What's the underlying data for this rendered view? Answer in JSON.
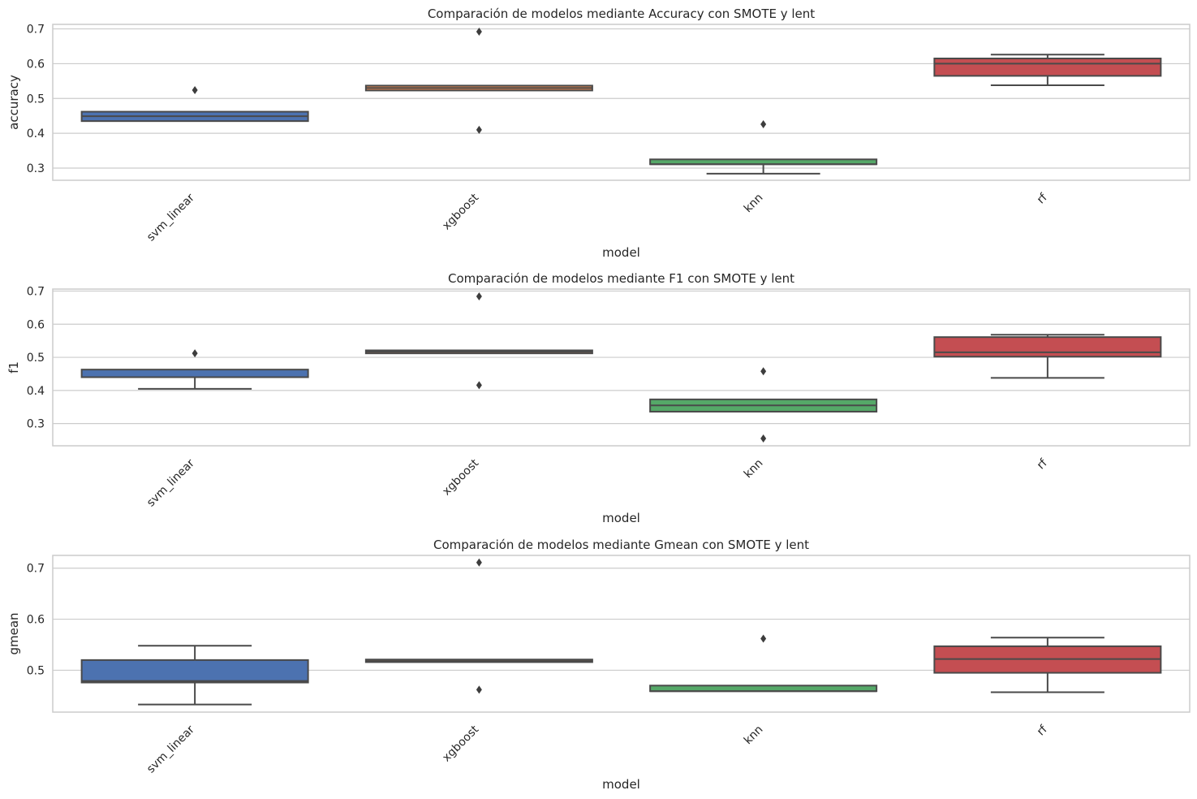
{
  "chart_data": [
    {
      "type": "box",
      "title": "Comparación de modelos mediante Accuracy con SMOTE y lent",
      "xlabel": "model",
      "ylabel": "accuracy",
      "categories": [
        "svm_linear",
        "xgboost",
        "knn",
        "rf"
      ],
      "colors": [
        "#4c72b0",
        "#dd8452",
        "#55a868",
        "#c44e52"
      ],
      "ylim": [
        0.265,
        0.713
      ],
      "yticks": [
        0.3,
        0.4,
        0.5,
        0.6,
        0.7
      ],
      "ytick_labels": [
        "0.3",
        "0.4",
        "0.5",
        "0.6",
        "0.7"
      ],
      "grid": true,
      "boxes": [
        {
          "whislo": 0.435,
          "q1": 0.435,
          "med": 0.449,
          "q3": 0.462,
          "whishi": 0.462,
          "fliers": [
            0.524
          ]
        },
        {
          "whislo": 0.523,
          "q1": 0.523,
          "med": 0.53,
          "q3": 0.537,
          "whishi": 0.537,
          "fliers": [
            0.692,
            0.41
          ]
        },
        {
          "whislo": 0.284,
          "q1": 0.311,
          "med": 0.311,
          "q3": 0.325,
          "whishi": 0.325,
          "fliers": [
            0.426
          ]
        },
        {
          "whislo": 0.538,
          "q1": 0.565,
          "med": 0.6,
          "q3": 0.615,
          "whishi": 0.626,
          "fliers": []
        }
      ]
    },
    {
      "type": "box",
      "title": "Comparación de modelos mediante F1 con SMOTE y lent",
      "xlabel": "model",
      "ylabel": "f1",
      "categories": [
        "svm_linear",
        "xgboost",
        "knn",
        "rf"
      ],
      "colors": [
        "#4c72b0",
        "#dd8452",
        "#55a868",
        "#c44e52"
      ],
      "ylim": [
        0.233,
        0.706
      ],
      "yticks": [
        0.3,
        0.4,
        0.5,
        0.6,
        0.7
      ],
      "ytick_labels": [
        "0.3",
        "0.4",
        "0.5",
        "0.6",
        "0.7"
      ],
      "grid": true,
      "boxes": [
        {
          "whislo": 0.405,
          "q1": 0.44,
          "med": 0.44,
          "q3": 0.463,
          "whishi": 0.463,
          "fliers": [
            0.512
          ]
        },
        {
          "whislo": 0.512,
          "q1": 0.512,
          "med": 0.517,
          "q3": 0.521,
          "whishi": 0.521,
          "fliers": [
            0.684,
            0.416
          ]
        },
        {
          "whislo": 0.336,
          "q1": 0.336,
          "med": 0.355,
          "q3": 0.373,
          "whishi": 0.373,
          "fliers": [
            0.458,
            0.255
          ]
        },
        {
          "whislo": 0.438,
          "q1": 0.502,
          "med": 0.515,
          "q3": 0.561,
          "whishi": 0.568,
          "fliers": []
        }
      ]
    },
    {
      "type": "box",
      "title": "Comparación de modelos mediante Gmean con SMOTE y lent",
      "xlabel": "model",
      "ylabel": "gmean",
      "categories": [
        "svm_linear",
        "xgboost",
        "knn",
        "rf"
      ],
      "colors": [
        "#4c72b0",
        "#dd8452",
        "#55a868",
        "#c44e52"
      ],
      "ylim": [
        0.418,
        0.725
      ],
      "yticks": [
        0.5,
        0.6,
        0.7
      ],
      "ytick_labels": [
        "0.5",
        "0.6",
        "0.7"
      ],
      "grid": true,
      "boxes": [
        {
          "whislo": 0.433,
          "q1": 0.476,
          "med": 0.479,
          "q3": 0.52,
          "whishi": 0.548,
          "fliers": []
        },
        {
          "whislo": 0.516,
          "q1": 0.516,
          "med": 0.518,
          "q3": 0.521,
          "whishi": 0.521,
          "fliers": [
            0.711,
            0.462
          ]
        },
        {
          "whislo": 0.459,
          "q1": 0.459,
          "med": 0.459,
          "q3": 0.47,
          "whishi": 0.47,
          "fliers": [
            0.562
          ]
        },
        {
          "whislo": 0.457,
          "q1": 0.495,
          "med": 0.522,
          "q3": 0.547,
          "whishi": 0.564,
          "fliers": []
        }
      ]
    }
  ]
}
